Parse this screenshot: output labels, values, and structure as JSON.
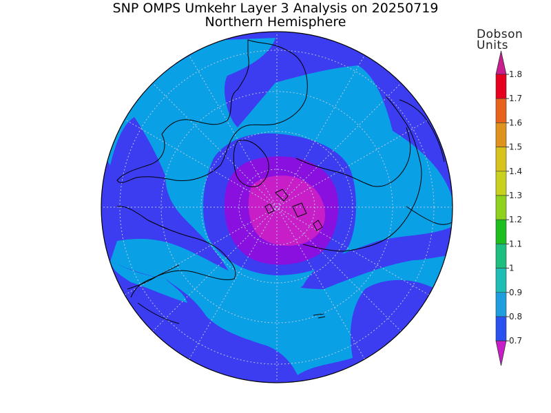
{
  "title": {
    "line1": "SNP OMPS Umkehr Layer 3 Analysis on 20250719",
    "line2": "Northern Hemisphere"
  },
  "legend": {
    "unit_line1": "Dobson",
    "unit_line2": "Units",
    "ticks": [
      "1.8",
      "1.7",
      "1.6",
      "1.5",
      "1.4",
      "1.3",
      "1.2",
      "1.1",
      "1",
      "0.9",
      "0.8",
      "0.7"
    ],
    "colors": [
      "#c81e8e",
      "#e6001e",
      "#e8621e",
      "#e0921e",
      "#d8c21e",
      "#c8d21e",
      "#8ed21e",
      "#1ebe1e",
      "#1ebe7e",
      "#1ebeb4",
      "#1e9ede",
      "#2a50f0",
      "#6a10d8",
      "#c81ec8"
    ]
  },
  "map_data": {
    "projection": "north-polar-stereographic",
    "field_colors": {
      "below_0.7": "#c81ec8",
      "0.7-0.8": "#8a10e0",
      "0.8-0.9": "#3c3cf0",
      "0.9-1.0": "#0aa0e6"
    }
  }
}
